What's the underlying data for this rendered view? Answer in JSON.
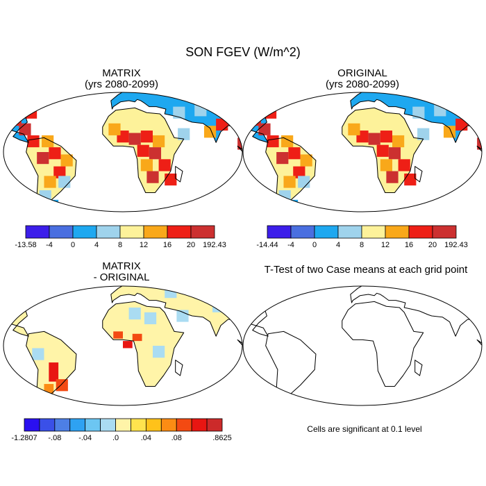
{
  "figure": {
    "title": "SON FGEV (W/m^2)"
  },
  "panels": [
    {
      "id": "matrix",
      "title": "MATRIX",
      "subtitle": "(yrs 2080-2099)"
    },
    {
      "id": "original",
      "title": "ORIGINAL",
      "subtitle": "(yrs 2080-2099)"
    },
    {
      "id": "difference",
      "title": "MATRIX",
      "subtitle": "- ORIGINAL"
    },
    {
      "id": "ttest",
      "title": "T-Test of two Case means at each grid point",
      "subtitle": ""
    }
  ],
  "colorbars": [
    {
      "for": "matrix",
      "colors": [
        "#3c1eea",
        "#4a6fe0",
        "#1ea8f0",
        "#9fd3ec",
        "#fdf29a",
        "#f9a81a",
        "#ee1f16",
        "#cc3030"
      ],
      "labels": [
        "-13.58",
        "-4",
        "0",
        "4",
        "8",
        "12",
        "16",
        "20",
        "192.43"
      ]
    },
    {
      "for": "original",
      "colors": [
        "#3c1eea",
        "#4a6fe0",
        "#1ea8f0",
        "#9fd3ec",
        "#fdf29a",
        "#f9a81a",
        "#ee1f16",
        "#cc3030"
      ],
      "labels": [
        "-14.44",
        "-4",
        "0",
        "4",
        "8",
        "12",
        "16",
        "20",
        "192.43"
      ]
    },
    {
      "for": "difference",
      "colors": [
        "#2a10f0",
        "#3a50e8",
        "#4d7fe6",
        "#2ea2f2",
        "#6cc6f2",
        "#aadcf2",
        "#fff4a8",
        "#ffe34e",
        "#ffc21a",
        "#fb8c14",
        "#f34a12",
        "#e81612",
        "#cc2a2a"
      ],
      "labels": [
        "-1.2807",
        "-.08",
        "-.04",
        ".0",
        ".04",
        ".08",
        ".8625"
      ],
      "label_box_index": [
        0,
        2,
        4,
        6,
        8,
        10,
        13
      ]
    }
  ],
  "significance_note": "Cells are significant at 0.1 level"
}
